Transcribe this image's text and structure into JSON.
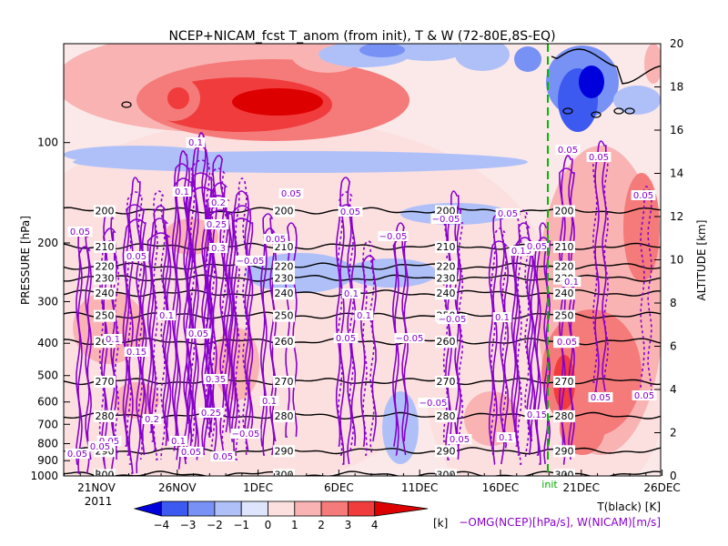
{
  "chart_data": {
    "type": "heatmap",
    "title": "NCEP+NICAM_fcst T_anom (from init), T & W  (72-80E,8S-EQ)",
    "x_ticks": [
      "21NOV",
      "26NOV",
      "1DEC",
      "6DEC",
      "11DEC",
      "16DEC",
      "21DEC",
      "26DEC"
    ],
    "x_year": "2011",
    "init_label": "init",
    "y_left_label": "PRESSURE [hPa]",
    "y_left_ticks": [
      100,
      200,
      300,
      400,
      500,
      600,
      700,
      800,
      900,
      1000
    ],
    "y_right_label": "ALTITUDE [km]",
    "y_right_ticks": [
      0,
      2,
      4,
      6,
      8,
      10,
      12,
      14,
      16,
      18,
      20
    ],
    "colorbar": {
      "ticks": [
        -4,
        -3,
        -2,
        -1,
        0,
        1,
        2,
        3,
        4
      ],
      "tick_labels": [
        "−4",
        "−3",
        "−2",
        "−1",
        "0",
        "1",
        "2",
        "3",
        "4"
      ],
      "unit": "[k]",
      "colors": [
        "#0000dd",
        "#3c5af0",
        "#7891f5",
        "#afc0f8",
        "#dde4fb",
        "#fce0e0",
        "#f9b3b3",
        "#f57a7a",
        "#f03c3c",
        "#dd0000"
      ]
    },
    "legend_lines": [
      "T(black) [K]",
      "−OMG(NCEP)[hPa/s], W(NICAM)[m/s]"
    ],
    "temperature_contours": [
      {
        "p": 160,
        "label": "200"
      },
      {
        "p": 205,
        "label": "210"
      },
      {
        "p": 235,
        "label": "220"
      },
      {
        "p": 255,
        "label": "230"
      },
      {
        "p": 283,
        "label": "240"
      },
      {
        "p": 330,
        "label": "250"
      },
      {
        "p": 395,
        "label": "260"
      },
      {
        "p": 520,
        "label": "270"
      },
      {
        "p": 660,
        "label": "280"
      },
      {
        "p": 840,
        "label": "290"
      },
      {
        "p": 990,
        "label": "300"
      }
    ],
    "omega_labels": [
      "0.05",
      "0.1",
      "0.15",
      "0.2",
      "0.25",
      "0.3",
      "0.35",
      "−0.05"
    ]
  }
}
